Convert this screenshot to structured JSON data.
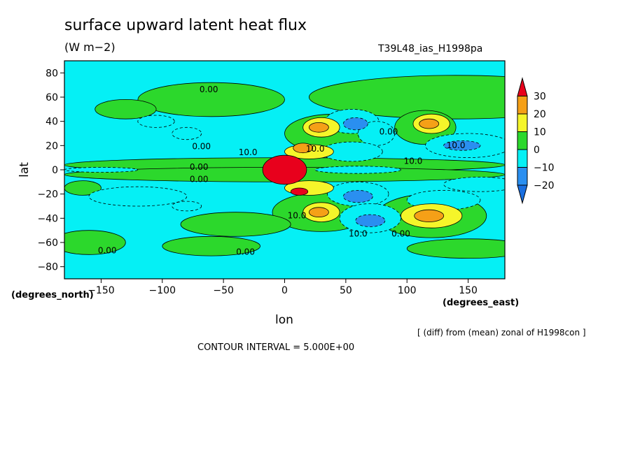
{
  "chart_data": {
    "type": "heatmap",
    "title": "surface upward latent heat flux",
    "units": "(W m−2)",
    "run_id": "T39L48_ias_H1998pa",
    "xlabel": "lon",
    "ylabel": "lat",
    "x_unit_label": "(degrees_east)",
    "y_unit_label": "(degrees_north)",
    "xlim": [
      -180,
      180
    ],
    "ylim": [
      -90,
      90
    ],
    "x_ticks": [
      -150,
      -100,
      -50,
      0,
      50,
      100,
      150
    ],
    "y_ticks": [
      -80,
      -60,
      -40,
      -20,
      0,
      20,
      40,
      60,
      80
    ],
    "note": "[ (diff) from (mean) zonal of H1998con ]",
    "contour_interval": "CONTOUR INTERVAL = 5.000E+00",
    "colorbar": {
      "levels": [
        30,
        20,
        10,
        0,
        -10,
        -20
      ],
      "bands": [
        {
          "color": "#e8001c"
        },
        {
          "color": "#f5a017"
        },
        {
          "color": "#f5f52a"
        },
        {
          "color": "#2cd82c"
        },
        {
          "color": "#05f0f5"
        },
        {
          "color": "#2a8ff0"
        },
        {
          "color": "#1a6fe0"
        }
      ]
    },
    "contour_labels": [
      "0.00",
      "0.00",
      "0.00",
      "0.00",
      "10.0",
      "0.00",
      "0.00",
      "0.00",
      "10.0",
      "10.0",
      "10.0",
      "10.0",
      "0.00",
      "10.0"
    ],
    "blobs": [
      {
        "lon": 140,
        "lat": 60,
        "rx": 120,
        "ry": 18,
        "level": 0
      },
      {
        "lon": -60,
        "lat": 58,
        "rx": 60,
        "ry": 14,
        "level": 0
      },
      {
        "lon": 40,
        "lat": 30,
        "rx": 40,
        "ry": 16,
        "level": 0
      },
      {
        "lon": 30,
        "lat": 35,
        "rx": 15,
        "ry": 8,
        "level": 10
      },
      {
        "lon": 28,
        "lat": 35,
        "rx": 8,
        "ry": 4,
        "level": 20
      },
      {
        "lon": 115,
        "lat": 35,
        "rx": 25,
        "ry": 14,
        "level": 0
      },
      {
        "lon": 120,
        "lat": 38,
        "rx": 15,
        "ry": 8,
        "level": 10
      },
      {
        "lon": 118,
        "lat": 38,
        "rx": 8,
        "ry": 4,
        "level": 20
      },
      {
        "lon": 30,
        "lat": -35,
        "rx": 40,
        "ry": 16,
        "level": 0
      },
      {
        "lon": 30,
        "lat": -35,
        "rx": 15,
        "ry": 8,
        "level": 10
      },
      {
        "lon": 28,
        "lat": -35,
        "rx": 8,
        "ry": 4,
        "level": 20
      },
      {
        "lon": 120,
        "lat": -38,
        "rx": 45,
        "ry": 18,
        "level": 0
      },
      {
        "lon": 120,
        "lat": -38,
        "rx": 25,
        "ry": 10,
        "level": 10
      },
      {
        "lon": 118,
        "lat": -38,
        "rx": 12,
        "ry": 5,
        "level": 20
      },
      {
        "lon": -40,
        "lat": -45,
        "rx": 45,
        "ry": 10,
        "level": 0
      },
      {
        "lon": -160,
        "lat": -60,
        "rx": 30,
        "ry": 10,
        "level": 0
      },
      {
        "lon": -60,
        "lat": -63,
        "rx": 40,
        "ry": 8,
        "level": 0
      },
      {
        "lon": 150,
        "lat": -65,
        "rx": 50,
        "ry": 8,
        "level": 0
      },
      {
        "lon": -130,
        "lat": 50,
        "rx": 25,
        "ry": 8,
        "level": 0
      },
      {
        "lon": -165,
        "lat": -15,
        "rx": 15,
        "ry": 6,
        "level": 0
      },
      {
        "lon": 0,
        "lat": 4,
        "rx": 180,
        "ry": 6,
        "level": 0
      },
      {
        "lon": 0,
        "lat": -4,
        "rx": 180,
        "ry": 6,
        "level": 0
      },
      {
        "lon": 20,
        "lat": 15,
        "rx": 20,
        "ry": 6,
        "level": 10
      },
      {
        "lon": 15,
        "lat": 18,
        "rx": 8,
        "ry": 4,
        "level": 20
      },
      {
        "lon": 20,
        "lat": -15,
        "rx": 20,
        "ry": 6,
        "level": 10
      },
      {
        "lon": 12,
        "lat": -18,
        "rx": 7,
        "ry": 3,
        "level": 30
      },
      {
        "lon": 0,
        "lat": 0,
        "rx": 18,
        "ry": 12,
        "level": 30
      },
      {
        "lon": 55,
        "lat": 40,
        "rx": 22,
        "ry": 10,
        "level": -10
      },
      {
        "lon": 58,
        "lat": 38,
        "rx": 10,
        "ry": 5,
        "level": -20
      },
      {
        "lon": 75,
        "lat": 30,
        "rx": 15,
        "ry": 10,
        "level": -10
      },
      {
        "lon": 55,
        "lat": 15,
        "rx": 25,
        "ry": 8,
        "level": -10
      },
      {
        "lon": 60,
        "lat": -20,
        "rx": 25,
        "ry": 10,
        "level": -10
      },
      {
        "lon": 60,
        "lat": -22,
        "rx": 12,
        "ry": 5,
        "level": -20
      },
      {
        "lon": 70,
        "lat": -40,
        "rx": 25,
        "ry": 12,
        "level": -10
      },
      {
        "lon": 70,
        "lat": -42,
        "rx": 12,
        "ry": 5,
        "level": -20
      },
      {
        "lon": 150,
        "lat": 20,
        "rx": 35,
        "ry": 10,
        "level": -10
      },
      {
        "lon": 145,
        "lat": 20,
        "rx": 15,
        "ry": 4,
        "level": -20
      },
      {
        "lon": 130,
        "lat": -25,
        "rx": 30,
        "ry": 8,
        "level": -10
      },
      {
        "lon": 160,
        "lat": -12,
        "rx": 30,
        "ry": 6,
        "level": -10
      },
      {
        "lon": -120,
        "lat": -22,
        "rx": 40,
        "ry": 8,
        "level": -10
      },
      {
        "lon": -80,
        "lat": -30,
        "rx": 12,
        "ry": 4,
        "level": -10
      },
      {
        "lon": -105,
        "lat": 40,
        "rx": 15,
        "ry": 5,
        "level": -10
      },
      {
        "lon": -80,
        "lat": 30,
        "rx": 12,
        "ry": 5,
        "level": -10
      },
      {
        "lon": 60,
        "lat": 0,
        "rx": 35,
        "ry": 3,
        "level": -10
      },
      {
        "lon": -150,
        "lat": 0,
        "rx": 30,
        "ry": 2,
        "level": -10
      }
    ]
  }
}
